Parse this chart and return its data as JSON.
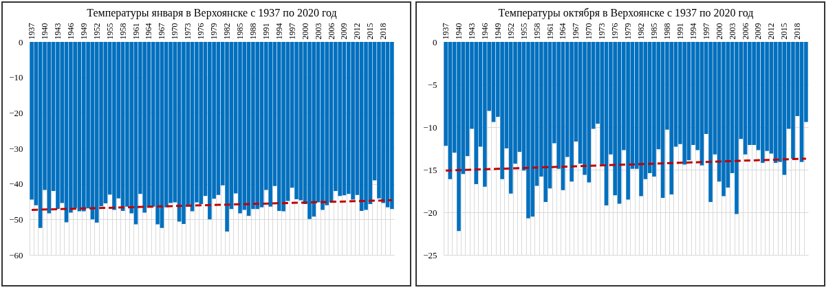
{
  "chart_data": [
    {
      "type": "bar",
      "title": "Температуры января в Верхоянске с 1937 по 2020  год",
      "categories": [
        "1937",
        null,
        null,
        "1940",
        null,
        null,
        "1943",
        null,
        null,
        "1946",
        null,
        null,
        "1949",
        null,
        null,
        "1952",
        null,
        null,
        "1955",
        null,
        null,
        "1958",
        null,
        null,
        "1961",
        null,
        null,
        "1964",
        null,
        null,
        "1967",
        null,
        null,
        "1970",
        null,
        null,
        "1973",
        null,
        null,
        "1976",
        null,
        null,
        "1979",
        null,
        null,
        "1982",
        null,
        null,
        "1985",
        null,
        null,
        "1988",
        null,
        null,
        "1991",
        null,
        null,
        "1994",
        null,
        null,
        "1997",
        null,
        null,
        "2000",
        null,
        null,
        "2003",
        null,
        null,
        "2006",
        null,
        null,
        "2009",
        null,
        null,
        "2012",
        null,
        null,
        "2015",
        null,
        null,
        "2018",
        null,
        null
      ],
      "series": [
        {
          "color": "#0070c0",
          "values": [
            -44.4,
            -46.0,
            -52.4,
            -41.7,
            -48.3,
            -42.0,
            -47.1,
            -45.4,
            -50.8,
            -48.1,
            -46.8,
            -47.7,
            -47.7,
            -46.9,
            -50.0,
            -50.9,
            -46.3,
            -45.5,
            -43.0,
            -47.3,
            -44.1,
            -47.6,
            -46.4,
            -48.3,
            -51.4,
            -42.8,
            -48.1,
            -46.6,
            -46.4,
            -51.4,
            -52.4,
            -46.6,
            -45.4,
            -45.2,
            -50.6,
            -51.3,
            -46.0,
            -47.7,
            -45.2,
            -45.7,
            -43.4,
            -50.0,
            -44.2,
            -43.1,
            -40.4,
            -53.4,
            -47.1,
            -42.7,
            -48.3,
            -47.3,
            -49.0,
            -47.1,
            -47.1,
            -46.6,
            -41.7,
            -46.4,
            -40.6,
            -47.6,
            -47.7,
            -44.8,
            -41.1,
            -44.3,
            -44.6,
            -45.7,
            -49.9,
            -49.2,
            -45.2,
            -47.3,
            -46.0,
            -45.2,
            -42.0,
            -43.4,
            -43.2,
            -42.8,
            -44.4,
            -43.1,
            -47.6,
            -47.3,
            -45.7,
            -39.0,
            -44.1,
            -45.4,
            -46.6,
            -47.1
          ]
        },
        {
          "type": "line",
          "color": "#c00000",
          "line_style": "dashed",
          "values": [
            -47.3,
            null,
            null,
            null,
            null,
            null,
            null,
            null,
            null,
            null,
            null,
            null,
            null,
            null,
            null,
            null,
            null,
            null,
            null,
            null,
            null,
            null,
            null,
            null,
            null,
            null,
            null,
            null,
            null,
            null,
            null,
            null,
            null,
            null,
            null,
            null,
            null,
            null,
            null,
            null,
            null,
            null,
            null,
            null,
            null,
            null,
            null,
            null,
            null,
            null,
            null,
            null,
            null,
            null,
            null,
            null,
            null,
            null,
            null,
            null,
            null,
            null,
            null,
            null,
            null,
            null,
            null,
            null,
            null,
            null,
            null,
            null,
            null,
            null,
            null,
            null,
            null,
            null,
            null,
            null,
            null,
            null,
            null,
            -44.6
          ]
        }
      ],
      "ylim": [
        -60,
        0
      ],
      "yticks": [
        -60,
        -50,
        -40,
        -30,
        -20,
        -10,
        0
      ],
      "grid": true
    },
    {
      "type": "bar",
      "title": "Температуры октября в Верхоянске с 1937 по 2020  год",
      "categories": [
        "1937",
        null,
        null,
        "1940",
        null,
        null,
        "1943",
        null,
        null,
        "1946",
        null,
        null,
        "1949",
        null,
        null,
        "1952",
        null,
        null,
        "1955",
        null,
        null,
        "1958",
        null,
        null,
        "1961",
        null,
        null,
        "1964",
        null,
        null,
        "1967",
        null,
        null,
        "1970",
        null,
        null,
        "1973",
        null,
        null,
        "1976",
        null,
        null,
        "1979",
        null,
        null,
        "1982",
        null,
        null,
        "1985",
        null,
        null,
        "1988",
        null,
        null,
        "1991",
        null,
        null,
        "1994",
        null,
        null,
        "1997",
        null,
        null,
        "2000",
        null,
        null,
        "2003",
        null,
        null,
        "2006",
        null,
        null,
        "2009",
        null,
        null,
        "2012",
        null,
        null,
        "2015",
        null,
        null,
        "2018",
        null,
        null
      ],
      "series": [
        {
          "color": "#0070c0",
          "values": [
            -12.2,
            -16.1,
            -13.0,
            -22.2,
            -15.5,
            -13.4,
            -10.2,
            -16.7,
            -12.3,
            -17.0,
            -8.1,
            -9.4,
            -8.8,
            -16.1,
            -12.5,
            -17.8,
            -14.3,
            -12.9,
            -15.1,
            -20.7,
            -20.5,
            -16.9,
            -15.8,
            -18.8,
            -17.2,
            -11.9,
            -14.9,
            -17.4,
            -13.5,
            -16.4,
            -11.7,
            -14.3,
            -15.6,
            -16.5,
            -10.2,
            -9.6,
            -14.4,
            -19.2,
            -13.2,
            -18.0,
            -19.0,
            -12.7,
            -18.5,
            -14.9,
            -14.9,
            -18.1,
            -16.1,
            -15.4,
            -15.8,
            -12.6,
            -18.3,
            -10.3,
            -17.9,
            -12.3,
            -12.0,
            -14.4,
            -13.9,
            -12.1,
            -12.7,
            -14.5,
            -10.8,
            -18.8,
            -13.2,
            -16.4,
            -18.1,
            -17.1,
            -15.4,
            -20.2,
            -11.4,
            -13.2,
            -12.1,
            -12.1,
            -12.7,
            -14.2,
            -12.8,
            -13.1,
            -14.2,
            -14.1,
            -15.6,
            -10.2,
            -13.7,
            -8.7,
            -14.1,
            -9.4
          ]
        },
        {
          "type": "line",
          "color": "#c00000",
          "line_style": "dashed",
          "values": [
            -15.1,
            null,
            null,
            null,
            null,
            null,
            null,
            null,
            null,
            null,
            null,
            null,
            null,
            null,
            null,
            null,
            null,
            null,
            null,
            null,
            null,
            null,
            null,
            null,
            null,
            null,
            null,
            null,
            null,
            null,
            null,
            null,
            null,
            null,
            null,
            null,
            null,
            null,
            null,
            null,
            null,
            null,
            null,
            null,
            null,
            null,
            null,
            null,
            null,
            null,
            null,
            null,
            null,
            null,
            null,
            null,
            null,
            null,
            null,
            null,
            null,
            null,
            null,
            null,
            null,
            null,
            null,
            null,
            null,
            null,
            null,
            null,
            null,
            null,
            null,
            null,
            null,
            null,
            null,
            null,
            null,
            null,
            null,
            -13.7
          ]
        }
      ],
      "ylim": [
        -25,
        0
      ],
      "yticks": [
        -25,
        -20,
        -15,
        -10,
        -5,
        0
      ],
      "grid": true
    }
  ]
}
